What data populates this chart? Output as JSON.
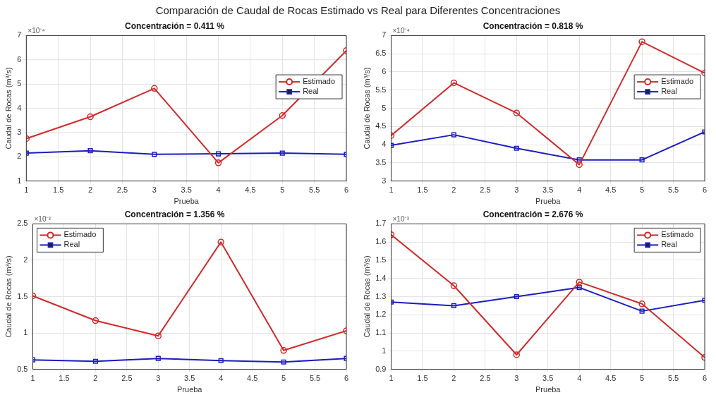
{
  "chart_data": [
    {
      "type": "line",
      "title": "Concentración = 0.411 %",
      "xlabel": "Prueba",
      "ylabel": "Caudal de Rocas (m³/s)",
      "annotations": [
        "Comparación de Caudal de Rocas Estimado vs Real para Diferentes Concentraciones",
        "×10⁻⁴"
      ],
      "x": [
        1,
        2,
        3,
        4,
        5,
        6
      ],
      "series": [
        {
          "name": "Estimado",
          "color": "#d02a2a",
          "marker": "circle",
          "values": [
            2.75,
            3.65,
            4.82,
            1.75,
            3.7,
            6.38
          ]
        },
        {
          "name": "Real",
          "color": "#1c1cc0",
          "marker": "square",
          "values": [
            2.15,
            2.25,
            2.1,
            2.12,
            2.15,
            2.1
          ]
        }
      ],
      "xlim": [
        1,
        6
      ],
      "xticks": [
        1,
        1.5,
        2,
        2.5,
        3,
        3.5,
        4,
        4.5,
        5,
        5.5,
        6
      ],
      "ylim": [
        1,
        7
      ],
      "yticks": [
        1,
        2,
        3,
        4,
        5,
        6,
        7
      ],
      "grid": true,
      "legend": "right"
    },
    {
      "type": "line",
      "title": "Concentración = 0.818 %",
      "xlabel": "Prueba",
      "ylabel": "Caudal de Rocas (m³/s)",
      "annotations": [
        "×10⁻⁴"
      ],
      "x": [
        1,
        2,
        3,
        4,
        5,
        6
      ],
      "series": [
        {
          "name": "Estimado",
          "color": "#d02a2a",
          "marker": "circle",
          "values": [
            4.25,
            5.7,
            4.87,
            3.45,
            6.83,
            5.97
          ]
        },
        {
          "name": "Real",
          "color": "#1c1cc0",
          "marker": "square",
          "values": [
            3.98,
            4.27,
            3.9,
            3.58,
            3.58,
            4.35
          ]
        }
      ],
      "xlim": [
        1,
        6
      ],
      "xticks": [
        1,
        1.5,
        2,
        2.5,
        3,
        3.5,
        4,
        4.5,
        5,
        5.5,
        6
      ],
      "ylim": [
        3,
        7
      ],
      "yticks": [
        3,
        3.5,
        4,
        4.5,
        5,
        5.5,
        6,
        6.5,
        7
      ],
      "grid": true,
      "legend": "right"
    },
    {
      "type": "line",
      "title": "Concentración = 1.356 %",
      "xlabel": "Prueba",
      "ylabel": "Caudal de Rocas (m³/s)",
      "annotations": [
        "×10⁻³"
      ],
      "x": [
        1,
        2,
        3,
        4,
        5,
        6
      ],
      "series": [
        {
          "name": "Estimado",
          "color": "#d02a2a",
          "marker": "circle",
          "values": [
            1.51,
            1.17,
            0.96,
            2.25,
            0.76,
            1.03
          ]
        },
        {
          "name": "Real",
          "color": "#1c1cc0",
          "marker": "square",
          "values": [
            0.63,
            0.61,
            0.65,
            0.62,
            0.6,
            0.65
          ]
        }
      ],
      "xlim": [
        1,
        6
      ],
      "xticks": [
        1,
        1.5,
        2,
        2.5,
        3,
        3.5,
        4,
        4.5,
        5,
        5.5,
        6
      ],
      "ylim": [
        0.5,
        2.5
      ],
      "yticks": [
        0.5,
        1,
        1.5,
        2,
        2.5
      ],
      "grid": true,
      "legend": "top left"
    },
    {
      "type": "line",
      "title": "Concentración = 2.676 %",
      "xlabel": "Prueba",
      "ylabel": "Caudal de Rocas (m³/s)",
      "annotations": [
        "×10⁻³"
      ],
      "x": [
        1,
        2,
        3,
        4,
        5,
        6
      ],
      "series": [
        {
          "name": "Estimado",
          "color": "#d02a2a",
          "marker": "circle",
          "values": [
            1.64,
            1.36,
            0.98,
            1.38,
            1.26,
            0.965
          ]
        },
        {
          "name": "Real",
          "color": "#1c1cc0",
          "marker": "square",
          "values": [
            1.27,
            1.25,
            1.3,
            1.35,
            1.22,
            1.28
          ]
        }
      ],
      "xlim": [
        1,
        6
      ],
      "xticks": [
        1,
        1.5,
        2,
        2.5,
        3,
        3.5,
        4,
        4.5,
        5,
        5.5,
        6
      ],
      "ylim": [
        0.9,
        1.7
      ],
      "yticks": [
        0.9,
        1,
        1.1,
        1.2,
        1.3,
        1.4,
        1.5,
        1.6,
        1.7
      ],
      "grid": true,
      "legend": "top right"
    }
  ]
}
